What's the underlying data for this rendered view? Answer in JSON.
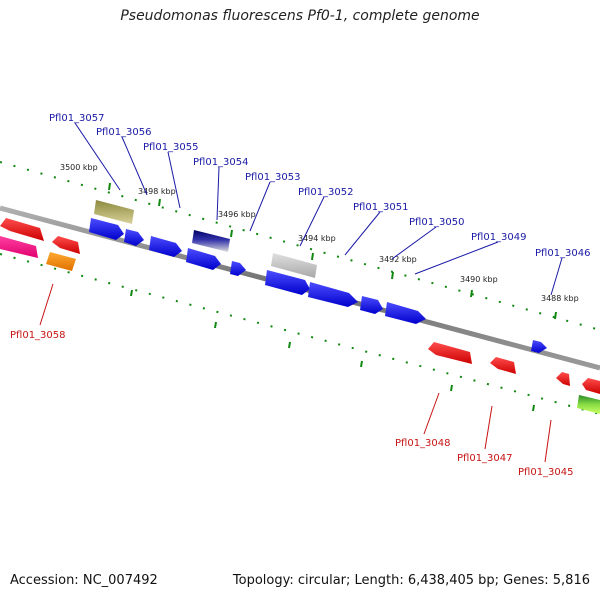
{
  "title": "Pseudomonas fluorescens Pf0-1, complete genome",
  "footer": {
    "accession_label": "Accession:",
    "accession": "NC_007492",
    "topology_text": "Topology: circular; Length: 6,438,405 bp; Genes: 5,816"
  },
  "ticks": [
    "3500 kbp",
    "3498 kbp",
    "3496 kbp",
    "3494 kbp",
    "3492 kbp",
    "3490 kbp",
    "3488 kbp"
  ],
  "genes_top": [
    "Pfl01_3057",
    "Pfl01_3056",
    "Pfl01_3055",
    "Pfl01_3054",
    "Pfl01_3053",
    "Pfl01_3052",
    "Pfl01_3051",
    "Pfl01_3050",
    "Pfl01_3049",
    "Pfl01_3046"
  ],
  "genes_bottom": [
    "Pfl01_3058",
    "Pfl01_3048",
    "Pfl01_3047",
    "Pfl01_3045"
  ],
  "colors": {
    "backbone": "#808080",
    "forward_gene": "#0000ff",
    "reverse_gene": "#ff0000",
    "tick_mark": "#118811",
    "label_blue": "#1a1aa6",
    "label_red": "#c81414"
  }
}
